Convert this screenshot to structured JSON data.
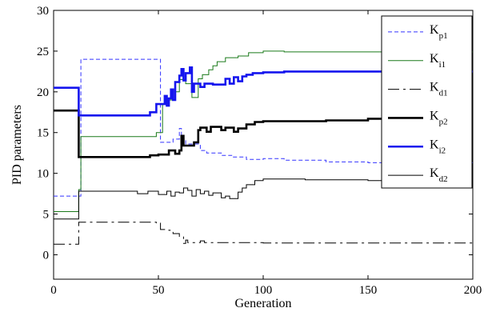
{
  "chart_data": {
    "type": "line",
    "xlabel": "Generation",
    "ylabel": "PID parameters",
    "xlim": [
      0,
      200
    ],
    "ylim": [
      -3,
      30
    ],
    "xticks": [
      0,
      50,
      100,
      150,
      200
    ],
    "yticks": [
      0,
      5,
      10,
      15,
      20,
      25,
      30
    ],
    "grid": false,
    "legend_position": "top-right",
    "series": [
      {
        "name": "Kp1",
        "name_main": "K",
        "name_sub": "p1",
        "color": "#3333ff",
        "style": "dashed",
        "width": 1,
        "points": [
          [
            0,
            7.2
          ],
          [
            13,
            7.2
          ],
          [
            13,
            24
          ],
          [
            51,
            24
          ],
          [
            51,
            13.8
          ],
          [
            57,
            13.8
          ],
          [
            57,
            14.2
          ],
          [
            60,
            14.2
          ],
          [
            60,
            15.5
          ],
          [
            61,
            15.5
          ],
          [
            61,
            14.2
          ],
          [
            63,
            14.2
          ],
          [
            63,
            13.6
          ],
          [
            70,
            13.6
          ],
          [
            70,
            12.8
          ],
          [
            73,
            12.8
          ],
          [
            73,
            12.5
          ],
          [
            80,
            12.5
          ],
          [
            80,
            12.2
          ],
          [
            85,
            12.2
          ],
          [
            85,
            12.0
          ],
          [
            92,
            12.0
          ],
          [
            92,
            11.7
          ],
          [
            100,
            11.7
          ],
          [
            100,
            11.8
          ],
          [
            110,
            11.8
          ],
          [
            110,
            11.6
          ],
          [
            130,
            11.6
          ],
          [
            130,
            11.4
          ],
          [
            150,
            11.4
          ],
          [
            150,
            11.3
          ],
          [
            200,
            11.3
          ]
        ]
      },
      {
        "name": "Ki1",
        "name_main": "K",
        "name_sub": "i1",
        "color": "#1a7a1a",
        "style": "solid",
        "width": 1,
        "points": [
          [
            0,
            5.3
          ],
          [
            12,
            5.3
          ],
          [
            12,
            8
          ],
          [
            13,
            8
          ],
          [
            13,
            14.5
          ],
          [
            49,
            14.5
          ],
          [
            49,
            15
          ],
          [
            52,
            15
          ],
          [
            52,
            18.5
          ],
          [
            55,
            18.5
          ],
          [
            55,
            19
          ],
          [
            58,
            19
          ],
          [
            58,
            20
          ],
          [
            60,
            20
          ],
          [
            60,
            21.5
          ],
          [
            63,
            21.5
          ],
          [
            63,
            21
          ],
          [
            66,
            21
          ],
          [
            66,
            19.3
          ],
          [
            69,
            19.3
          ],
          [
            69,
            21.6
          ],
          [
            71,
            21.6
          ],
          [
            71,
            22.1
          ],
          [
            74,
            22.1
          ],
          [
            74,
            22.7
          ],
          [
            76,
            22.7
          ],
          [
            76,
            23.2
          ],
          [
            78,
            23.2
          ],
          [
            78,
            23.7
          ],
          [
            82,
            23.7
          ],
          [
            82,
            24.2
          ],
          [
            88,
            24.2
          ],
          [
            88,
            24.4
          ],
          [
            93,
            24.4
          ],
          [
            93,
            24.8
          ],
          [
            100,
            24.8
          ],
          [
            100,
            25
          ],
          [
            110,
            25
          ],
          [
            110,
            24.9
          ],
          [
            200,
            24.9
          ]
        ]
      },
      {
        "name": "Kd1",
        "name_main": "K",
        "name_sub": "d1",
        "color": "#000000",
        "style": "dashdot",
        "width": 1,
        "points": [
          [
            0,
            1.3
          ],
          [
            12,
            1.3
          ],
          [
            12,
            4
          ],
          [
            49,
            4
          ],
          [
            49,
            3.9
          ],
          [
            51,
            3.9
          ],
          [
            51,
            3.1
          ],
          [
            55,
            3.1
          ],
          [
            55,
            3.0
          ],
          [
            57,
            3.0
          ],
          [
            57,
            2.6
          ],
          [
            60,
            2.6
          ],
          [
            60,
            2.2
          ],
          [
            62,
            2.2
          ],
          [
            62,
            1.4
          ],
          [
            63,
            1.4
          ],
          [
            63,
            1.8
          ],
          [
            64,
            1.8
          ],
          [
            64,
            1.5
          ],
          [
            70,
            1.5
          ],
          [
            70,
            1.7
          ],
          [
            72,
            1.7
          ],
          [
            72,
            1.5
          ],
          [
            100,
            1.5
          ],
          [
            100,
            1.45
          ],
          [
            200,
            1.45
          ]
        ]
      },
      {
        "name": "Kp2",
        "name_main": "K",
        "name_sub": "p2",
        "color": "#000000",
        "style": "solid",
        "width": 2.6,
        "points": [
          [
            0,
            17.7
          ],
          [
            12,
            17.7
          ],
          [
            12,
            12
          ],
          [
            46,
            12
          ],
          [
            46,
            12.2
          ],
          [
            50,
            12.2
          ],
          [
            50,
            12.3
          ],
          [
            55,
            12.3
          ],
          [
            55,
            12.8
          ],
          [
            58,
            12.8
          ],
          [
            58,
            12.4
          ],
          [
            60,
            12.4
          ],
          [
            60,
            12.8
          ],
          [
            61,
            12.8
          ],
          [
            61,
            14.6
          ],
          [
            62,
            14.6
          ],
          [
            62,
            13.4
          ],
          [
            67,
            13.4
          ],
          [
            67,
            13.8
          ],
          [
            69,
            13.8
          ],
          [
            69,
            15.3
          ],
          [
            70,
            15.3
          ],
          [
            70,
            15.6
          ],
          [
            73,
            15.6
          ],
          [
            73,
            15.1
          ],
          [
            75,
            15.1
          ],
          [
            75,
            15.7
          ],
          [
            80,
            15.7
          ],
          [
            80,
            15.3
          ],
          [
            82,
            15.3
          ],
          [
            82,
            15.6
          ],
          [
            86,
            15.6
          ],
          [
            86,
            15.1
          ],
          [
            88,
            15.1
          ],
          [
            88,
            15.5
          ],
          [
            92,
            15.5
          ],
          [
            92,
            16.0
          ],
          [
            96,
            16.0
          ],
          [
            96,
            16.3
          ],
          [
            100,
            16.3
          ],
          [
            100,
            16.4
          ],
          [
            130,
            16.4
          ],
          [
            130,
            16.5
          ],
          [
            150,
            16.5
          ],
          [
            150,
            16.7
          ],
          [
            200,
            16.7
          ]
        ]
      },
      {
        "name": "Ki2",
        "name_main": "K",
        "name_sub": "i2",
        "color": "#1515ee",
        "style": "solid",
        "width": 2.6,
        "points": [
          [
            0,
            20.5
          ],
          [
            12,
            20.5
          ],
          [
            12,
            17.1
          ],
          [
            46,
            17.1
          ],
          [
            46,
            17.5
          ],
          [
            49,
            17.5
          ],
          [
            49,
            18.5
          ],
          [
            53,
            18.5
          ],
          [
            53,
            19.5
          ],
          [
            54,
            19.5
          ],
          [
            54,
            18.3
          ],
          [
            55,
            18.3
          ],
          [
            55,
            19.2
          ],
          [
            56,
            19.2
          ],
          [
            56,
            20.3
          ],
          [
            57,
            20.3
          ],
          [
            57,
            19.0
          ],
          [
            58,
            19.0
          ],
          [
            58,
            21.2
          ],
          [
            60,
            21.2
          ],
          [
            60,
            22.0
          ],
          [
            61,
            22.0
          ],
          [
            61,
            22.8
          ],
          [
            62,
            22.8
          ],
          [
            62,
            21.4
          ],
          [
            63,
            21.4
          ],
          [
            63,
            22.3
          ],
          [
            65,
            22.3
          ],
          [
            65,
            23.0
          ],
          [
            66,
            23.0
          ],
          [
            66,
            20.0
          ],
          [
            67,
            20.0
          ],
          [
            67,
            21.0
          ],
          [
            70,
            21.0
          ],
          [
            70,
            20.6
          ],
          [
            72,
            20.6
          ],
          [
            72,
            21.0
          ],
          [
            76,
            21.0
          ],
          [
            76,
            20.9
          ],
          [
            82,
            20.9
          ],
          [
            82,
            21.6
          ],
          [
            84,
            21.6
          ],
          [
            84,
            21.0
          ],
          [
            86,
            21.0
          ],
          [
            86,
            21.8
          ],
          [
            88,
            21.8
          ],
          [
            88,
            21.3
          ],
          [
            90,
            21.3
          ],
          [
            90,
            21.9
          ],
          [
            92,
            21.9
          ],
          [
            92,
            22.1
          ],
          [
            95,
            22.1
          ],
          [
            95,
            22.3
          ],
          [
            100,
            22.3
          ],
          [
            100,
            22.4
          ],
          [
            110,
            22.4
          ],
          [
            110,
            22.5
          ],
          [
            200,
            22.5
          ]
        ]
      },
      {
        "name": "Kd2",
        "name_main": "K",
        "name_sub": "d2",
        "color": "#000000",
        "style": "solid",
        "width": 1,
        "points": [
          [
            0,
            4.4
          ],
          [
            12,
            4.4
          ],
          [
            12,
            7.8
          ],
          [
            40,
            7.8
          ],
          [
            40,
            7.5
          ],
          [
            45,
            7.5
          ],
          [
            45,
            7.8
          ],
          [
            50,
            7.8
          ],
          [
            50,
            7.4
          ],
          [
            54,
            7.4
          ],
          [
            54,
            7.8
          ],
          [
            56,
            7.8
          ],
          [
            56,
            7.2
          ],
          [
            58,
            7.2
          ],
          [
            58,
            7.7
          ],
          [
            60,
            7.7
          ],
          [
            60,
            7.6
          ],
          [
            62,
            7.6
          ],
          [
            62,
            8.2
          ],
          [
            64,
            8.2
          ],
          [
            64,
            7.9
          ],
          [
            66,
            7.9
          ],
          [
            66,
            7.2
          ],
          [
            68,
            7.2
          ],
          [
            68,
            8.0
          ],
          [
            70,
            8.0
          ],
          [
            70,
            7.5
          ],
          [
            72,
            7.5
          ],
          [
            72,
            7.8
          ],
          [
            74,
            7.8
          ],
          [
            74,
            7.3
          ],
          [
            76,
            7.3
          ],
          [
            76,
            7.6
          ],
          [
            80,
            7.6
          ],
          [
            80,
            7.0
          ],
          [
            82,
            7.0
          ],
          [
            82,
            7.2
          ],
          [
            84,
            7.2
          ],
          [
            84,
            6.9
          ],
          [
            88,
            6.9
          ],
          [
            88,
            7.7
          ],
          [
            90,
            7.7
          ],
          [
            90,
            8.2
          ],
          [
            92,
            8.2
          ],
          [
            92,
            8.6
          ],
          [
            96,
            8.6
          ],
          [
            96,
            9.1
          ],
          [
            100,
            9.1
          ],
          [
            100,
            9.3
          ],
          [
            120,
            9.3
          ],
          [
            120,
            9.2
          ],
          [
            150,
            9.2
          ],
          [
            150,
            9.1
          ],
          [
            200,
            9.1
          ]
        ]
      }
    ]
  }
}
